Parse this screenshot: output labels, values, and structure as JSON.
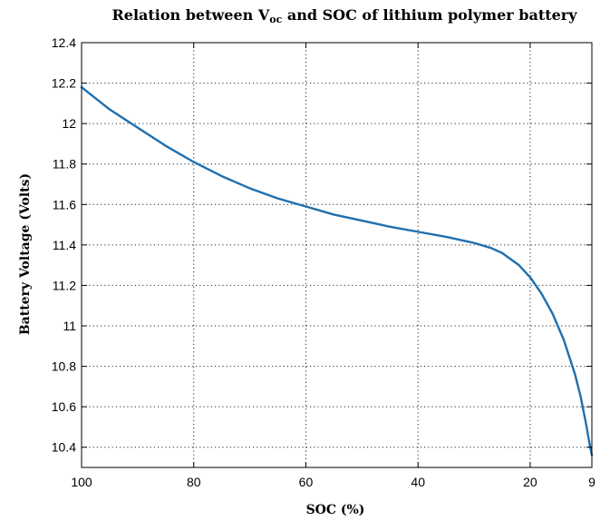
{
  "chart_data": {
    "type": "line",
    "title": {
      "prefix": "Relation between V",
      "subscript": "oc",
      "suffix": " and SOC of lithium polymer battery"
    },
    "xlabel": "SOC (%)",
    "ylabel": "Battery Voltage (Volts)",
    "x_reversed": true,
    "xlim": [
      100,
      9
    ],
    "ylim": [
      10.3,
      12.4
    ],
    "xticks": [
      100,
      80,
      60,
      40,
      20,
      9
    ],
    "xtick_labels": [
      "100",
      "80",
      "60",
      "40",
      "20",
      "9"
    ],
    "yticks": [
      10.4,
      10.6,
      10.8,
      11,
      11.2,
      11.4,
      11.6,
      11.8,
      12,
      12.2,
      12.4
    ],
    "ytick_labels": [
      "10.4",
      "10.6",
      "10.8",
      "11",
      "11.2",
      "11.4",
      "11.6",
      "11.8",
      "12",
      "12.2",
      "12.4"
    ],
    "grid": true,
    "series": [
      {
        "color": "#1f6fae",
        "points": [
          [
            100,
            12.18
          ],
          [
            95,
            12.07
          ],
          [
            90,
            11.98
          ],
          [
            85,
            11.89
          ],
          [
            80,
            11.81
          ],
          [
            75,
            11.74
          ],
          [
            70,
            11.68
          ],
          [
            65,
            11.63
          ],
          [
            60,
            11.59
          ],
          [
            55,
            11.55
          ],
          [
            50,
            11.52
          ],
          [
            45,
            11.49
          ],
          [
            40,
            11.465
          ],
          [
            35,
            11.44
          ],
          [
            30,
            11.41
          ],
          [
            27,
            11.385
          ],
          [
            25,
            11.36
          ],
          [
            22,
            11.3
          ],
          [
            20,
            11.24
          ],
          [
            18,
            11.16
          ],
          [
            16,
            11.06
          ],
          [
            14,
            10.93
          ],
          [
            12,
            10.76
          ],
          [
            11,
            10.65
          ],
          [
            10,
            10.51
          ],
          [
            9.5,
            10.43
          ],
          [
            9,
            10.36
          ]
        ]
      }
    ]
  }
}
